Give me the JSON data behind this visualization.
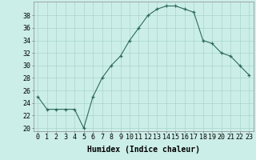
{
  "x": [
    0,
    1,
    2,
    3,
    4,
    5,
    6,
    7,
    8,
    9,
    10,
    11,
    12,
    13,
    14,
    15,
    16,
    17,
    18,
    19,
    20,
    21,
    22,
    23
  ],
  "y": [
    25,
    23,
    23,
    23,
    23,
    20,
    25,
    28,
    30,
    31.5,
    34,
    36,
    38,
    39,
    39.5,
    39.5,
    39,
    38.5,
    34,
    33.5,
    32,
    31.5,
    30,
    28.5
  ],
  "line_color": "#2d6b5e",
  "marker": "+",
  "bg_color": "#cceee8",
  "grid_color": "#aad4ce",
  "xlabel": "Humidex (Indice chaleur)",
  "ylabel_ticks": [
    20,
    22,
    24,
    26,
    28,
    30,
    32,
    34,
    36,
    38
  ],
  "ylim": [
    19.5,
    40.2
  ],
  "xlim": [
    -0.5,
    23.5
  ],
  "xlabel_fontsize": 7,
  "tick_fontsize": 6
}
